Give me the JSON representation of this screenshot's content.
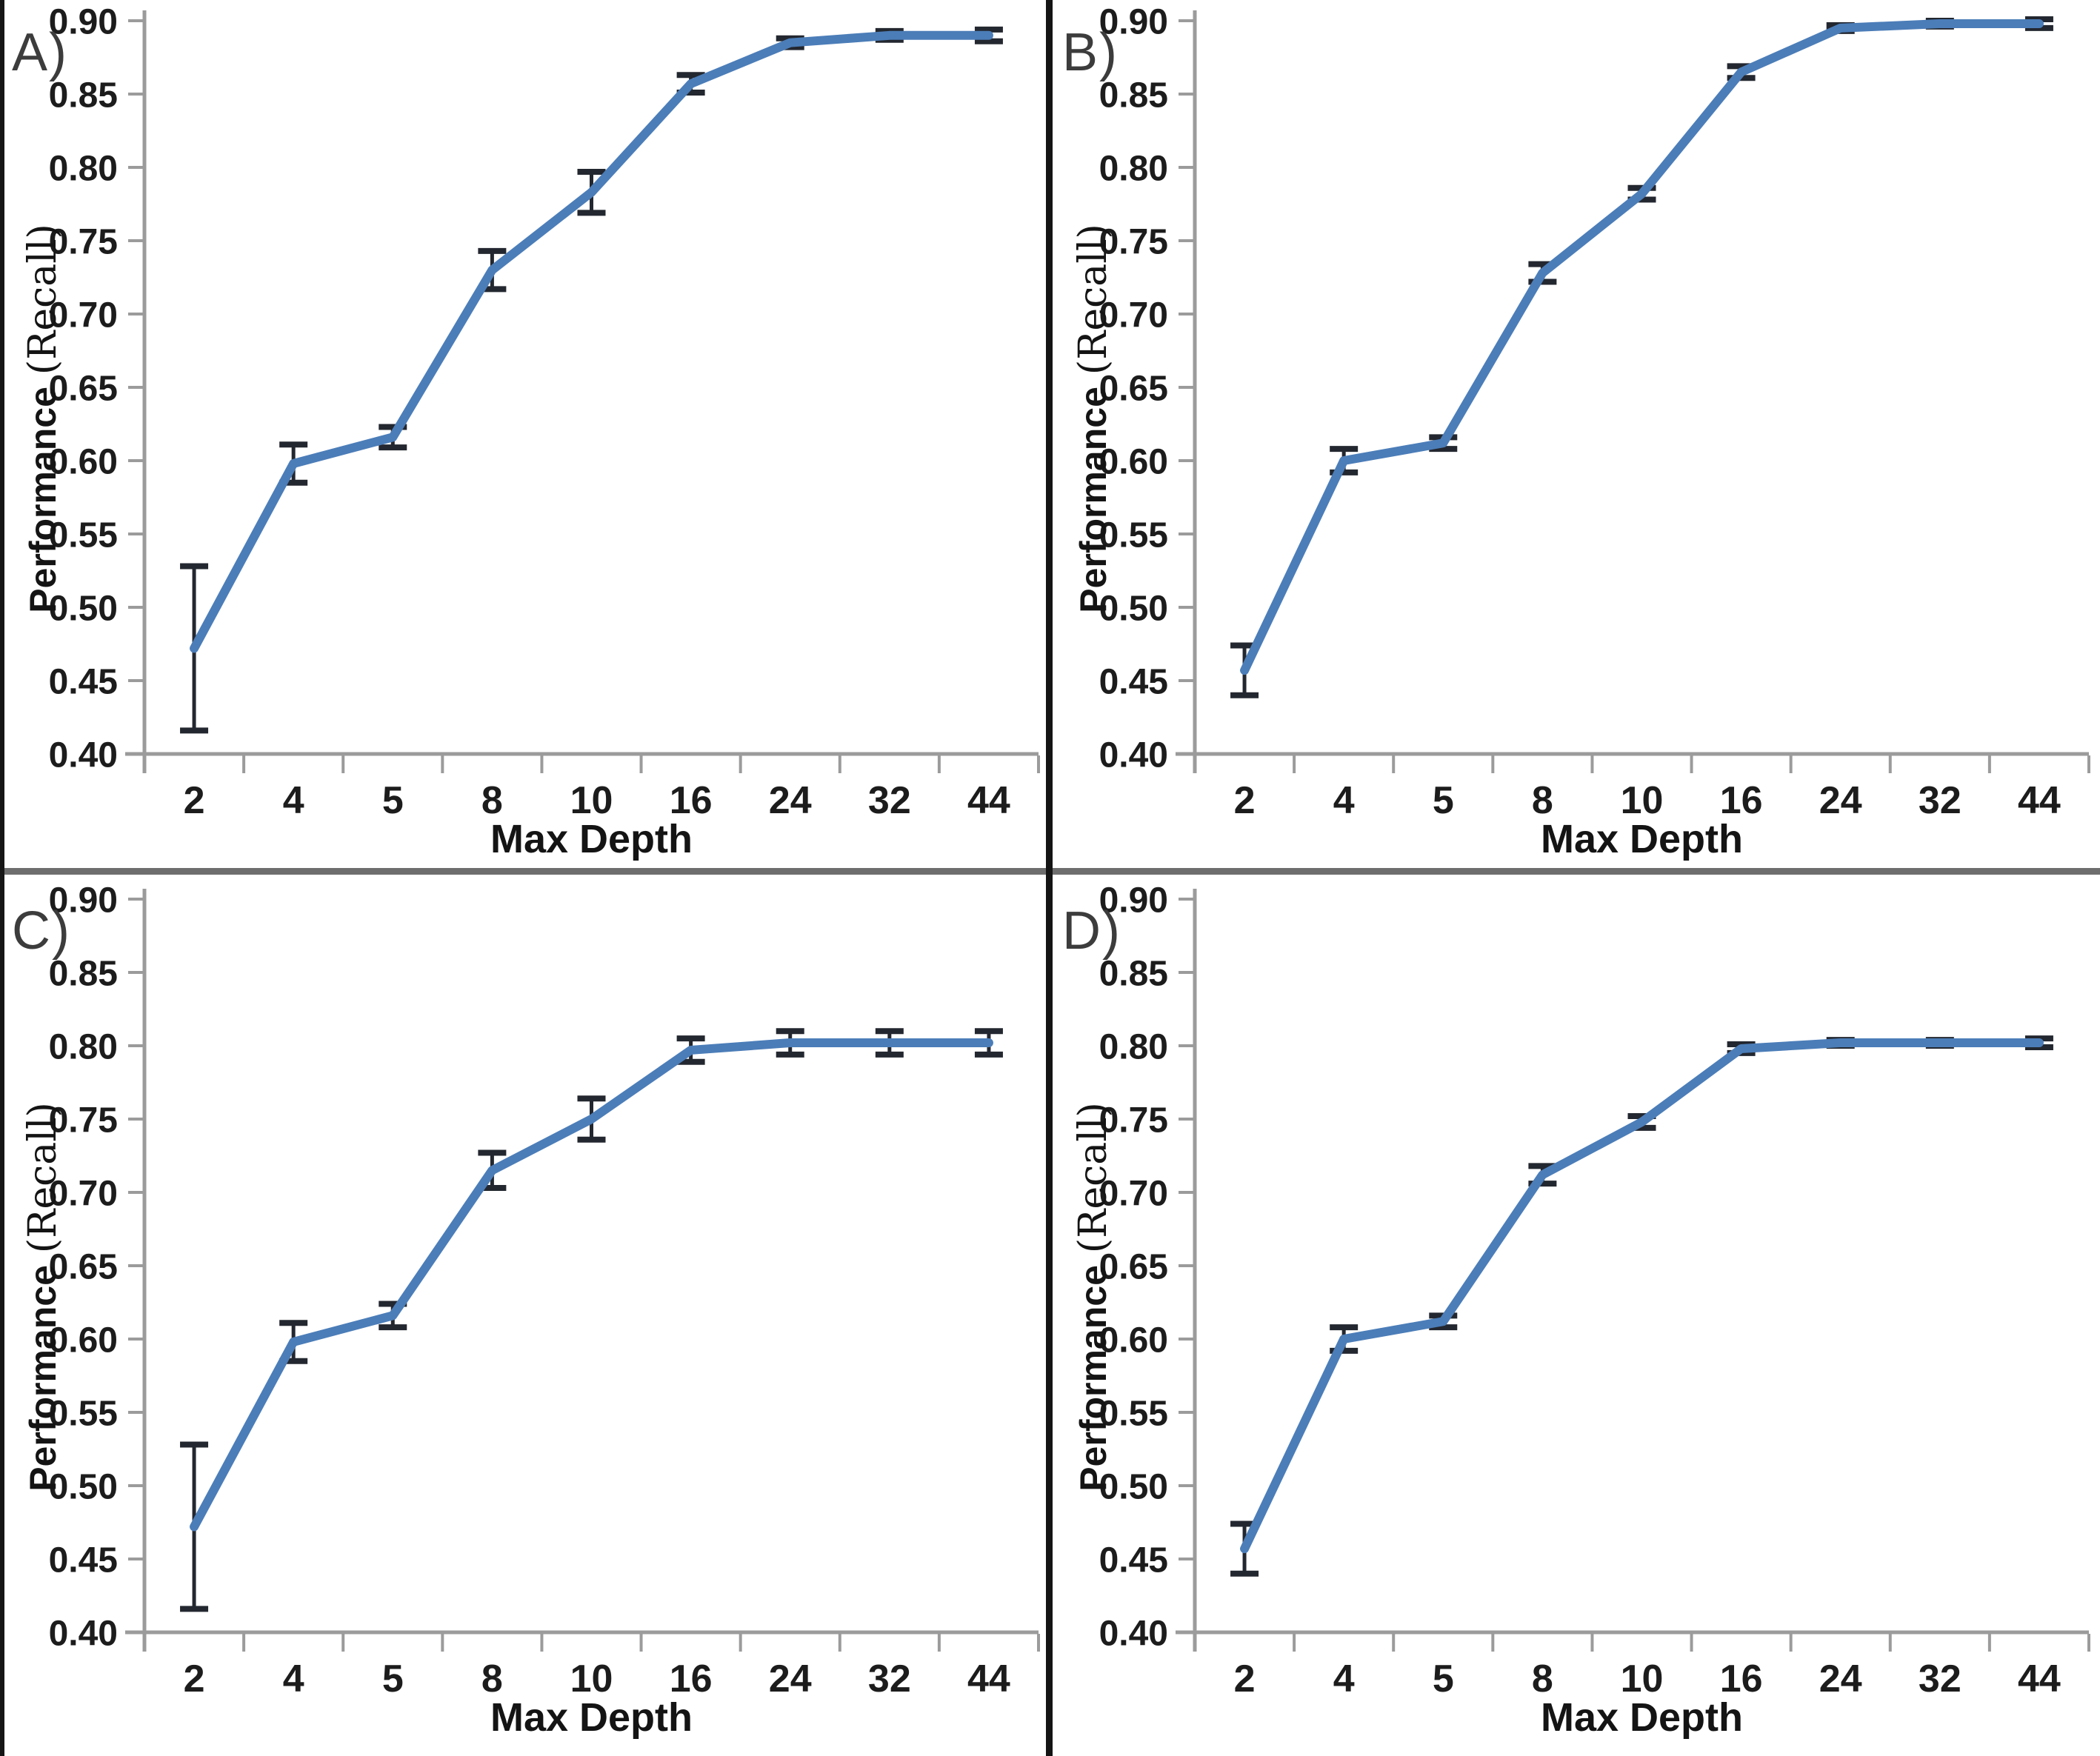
{
  "styles": {
    "line_color": "#4b7db8",
    "error_color": "#23272f",
    "axis_color": "#9b9b9b",
    "tick_text_color": "#1c1c1c"
  },
  "chart_data": [
    {
      "type": "line",
      "panel_label": "A)",
      "xlabel": "Max Depth",
      "ylabel_bold": "Performance",
      "ylabel_serif": "(Recall)",
      "categories": [
        "2",
        "4",
        "5",
        "8",
        "10",
        "16",
        "24",
        "32",
        "44"
      ],
      "series": [
        {
          "name": "Recall",
          "values": [
            0.472,
            0.598,
            0.616,
            0.73,
            0.783,
            0.857,
            0.885,
            0.89,
            0.89
          ],
          "errors": [
            0.056,
            0.013,
            0.007,
            0.013,
            0.014,
            0.006,
            0.003,
            0.003,
            0.004
          ]
        }
      ],
      "ylim": [
        0.4,
        0.9
      ],
      "ytick_step": 0.05,
      "grid": false,
      "legend_position": "none"
    },
    {
      "type": "line",
      "panel_label": "B)",
      "xlabel": "Max Depth",
      "ylabel_bold": "Performance",
      "ylabel_serif": "(Recall)",
      "categories": [
        "2",
        "4",
        "5",
        "8",
        "10",
        "16",
        "24",
        "32",
        "44"
      ],
      "series": [
        {
          "name": "Recall",
          "values": [
            0.457,
            0.6,
            0.612,
            0.728,
            0.782,
            0.865,
            0.895,
            0.898,
            0.898
          ],
          "errors": [
            0.017,
            0.008,
            0.004,
            0.006,
            0.004,
            0.004,
            0.002,
            0.002,
            0.003
          ]
        }
      ],
      "ylim": [
        0.4,
        0.9
      ],
      "ytick_step": 0.05,
      "grid": false,
      "legend_position": "none"
    },
    {
      "type": "line",
      "panel_label": "C)",
      "xlabel": "Max Depth",
      "ylabel_bold": "Performance",
      "ylabel_serif": "(Recall)",
      "categories": [
        "2",
        "4",
        "5",
        "8",
        "10",
        "16",
        "24",
        "32",
        "44"
      ],
      "series": [
        {
          "name": "Recall",
          "values": [
            0.472,
            0.598,
            0.616,
            0.715,
            0.75,
            0.797,
            0.802,
            0.802,
            0.802
          ],
          "errors": [
            0.056,
            0.013,
            0.008,
            0.012,
            0.014,
            0.008,
            0.008,
            0.008,
            0.008
          ]
        }
      ],
      "ylim": [
        0.4,
        0.9
      ],
      "ytick_step": 0.05,
      "grid": false,
      "legend_position": "none"
    },
    {
      "type": "line",
      "panel_label": "D)",
      "xlabel": "Max Depth",
      "ylabel_bold": "Performance",
      "ylabel_serif": "(Recall)",
      "categories": [
        "2",
        "4",
        "5",
        "8",
        "10",
        "16",
        "24",
        "32",
        "44"
      ],
      "series": [
        {
          "name": "Recall",
          "values": [
            0.457,
            0.6,
            0.612,
            0.712,
            0.748,
            0.798,
            0.802,
            0.802,
            0.802
          ],
          "errors": [
            0.017,
            0.008,
            0.004,
            0.006,
            0.004,
            0.003,
            0.002,
            0.002,
            0.003
          ]
        }
      ],
      "ylim": [
        0.4,
        0.9
      ],
      "ytick_step": 0.05,
      "grid": false,
      "legend_position": "none"
    }
  ]
}
